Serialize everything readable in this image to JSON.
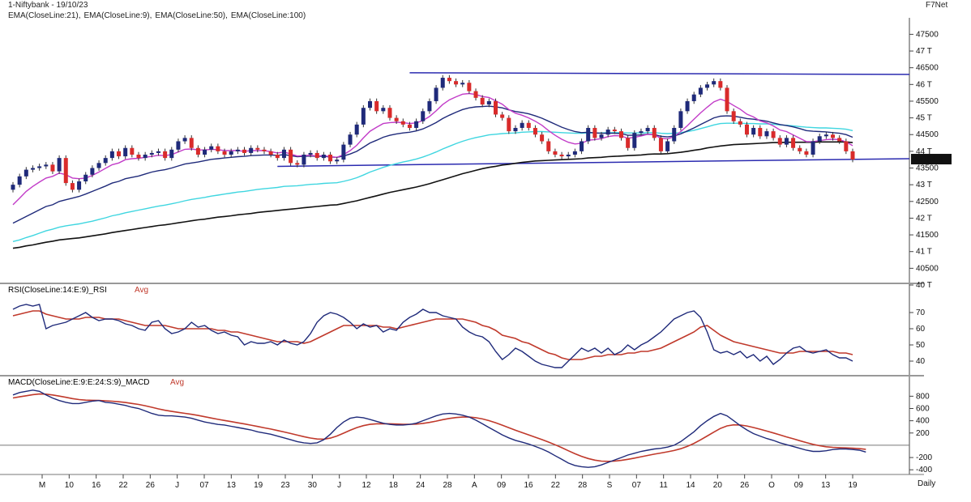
{
  "title": "1-Niftybank - 19/10/23",
  "vendor": "F7Net",
  "price_label": "43754.3",
  "interval": "Daily",
  "colors": {
    "bull": "#1f2a7a",
    "bear": "#d92b2b",
    "ema21": "#1f2a7a",
    "ema9": "#c23cc8",
    "ema50": "#3fd6e0",
    "ema100": "#111111",
    "rsi": "#1f2a7a",
    "rsi_avg": "#c0392b",
    "macd": "#1f2a7a",
    "macd_avg": "#c0392b",
    "grid": "#888888",
    "trend": "#2b2bb0"
  },
  "chart_data": [
    {
      "type": "candlestick",
      "legend": [
        "EMA(CloseLine:21),",
        "EMA(CloseLine:9),",
        "EMA(CloseLine:50),",
        "EMA(CloseLine:100)"
      ],
      "legend_colors": [
        "#1f2a7a",
        "#c23cc8",
        "#3fd6e0",
        "#111111"
      ],
      "y_ticks": [
        "47500",
        "47 T",
        "46500",
        "46 T",
        "45500",
        "45 T",
        "44500",
        "44 T",
        "43500",
        "43 T",
        "42500",
        "42 T",
        "41500",
        "41 T",
        "40500",
        "40 T"
      ],
      "ylim": [
        40000,
        47800
      ],
      "close": [
        43000,
        43250,
        43450,
        43500,
        43550,
        43600,
        43400,
        43800,
        43050,
        42850,
        43100,
        43300,
        43500,
        43650,
        43800,
        44000,
        43850,
        44100,
        43900,
        43800,
        43900,
        43950,
        44000,
        43800,
        44050,
        44300,
        44400,
        44100,
        43900,
        44050,
        44150,
        44000,
        43900,
        44000,
        44050,
        43950,
        44100,
        44050,
        44000,
        43900,
        43800,
        44050,
        43650,
        43600,
        43900,
        43950,
        43800,
        43900,
        43700,
        43750,
        44200,
        44500,
        44800,
        45300,
        45500,
        45200,
        45300,
        45000,
        44900,
        44800,
        44700,
        44900,
        45200,
        45500,
        45900,
        46200,
        46100,
        46000,
        46050,
        45800,
        45600,
        45400,
        45500,
        45100,
        45000,
        44600,
        44700,
        44850,
        44700,
        44500,
        44300,
        44000,
        43900,
        43850,
        43900,
        44000,
        44300,
        44700,
        44400,
        44500,
        44650,
        44600,
        44400,
        44100,
        44550,
        44600,
        44700,
        44400,
        44000,
        44300,
        44700,
        45200,
        45500,
        45700,
        45900,
        46000,
        46100,
        45900,
        45200,
        44900,
        44800,
        44500,
        44700,
        44450,
        44600,
        44400,
        44200,
        44400,
        44100,
        44000,
        43900,
        44300,
        44450,
        44500,
        44400,
        44300,
        44000,
        43754
      ],
      "ema21": [
        41850,
        41950,
        42050,
        42150,
        42250,
        42350,
        42400,
        42500,
        42550,
        42600,
        42650,
        42720,
        42800,
        42880,
        42960,
        43050,
        43100,
        43180,
        43220,
        43260,
        43320,
        43380,
        43420,
        43450,
        43500,
        43560,
        43620,
        43650,
        43680,
        43720,
        43760,
        43780,
        43800,
        43820,
        43840,
        43850,
        43870,
        43880,
        43890,
        43890,
        43880,
        43900,
        43870,
        43840,
        43850,
        43860,
        43850,
        43850,
        43830,
        43820,
        43860,
        43920,
        44000,
        44120,
        44250,
        44330,
        44420,
        44480,
        44520,
        44550,
        44570,
        44610,
        44670,
        44760,
        44860,
        44980,
        45080,
        45170,
        45250,
        45300,
        45330,
        45340,
        45350,
        45330,
        45300,
        45240,
        45190,
        45160,
        45120,
        45060,
        44990,
        44900,
        44810,
        44720,
        44650,
        44590,
        44560,
        44570,
        44550,
        44540,
        44540,
        44540,
        44530,
        44480,
        44480,
        44490,
        44510,
        44500,
        44450,
        44430,
        44460,
        44520,
        44610,
        44700,
        44800,
        44900,
        45000,
        45050,
        45060,
        45050,
        45020,
        44980,
        44960,
        44930,
        44900,
        44850,
        44800,
        44770,
        44730,
        44680,
        44620,
        44600,
        44590,
        44580,
        44560,
        44540,
        44500,
        44420
      ],
      "ema9": [
        42400,
        42600,
        42800,
        42950,
        43080,
        43200,
        43250,
        43350,
        43300,
        43200,
        43180,
        43200,
        43280,
        43380,
        43490,
        43600,
        43650,
        43750,
        43780,
        43790,
        43820,
        43850,
        43880,
        43870,
        43900,
        43980,
        44060,
        44070,
        44040,
        44040,
        44060,
        44050,
        44020,
        44020,
        44020,
        44000,
        44020,
        44020,
        44020,
        43990,
        43950,
        43980,
        43920,
        43860,
        43870,
        43880,
        43860,
        43870,
        43840,
        43820,
        43900,
        44020,
        44180,
        44400,
        44600,
        44720,
        44830,
        44860,
        44870,
        44860,
        44830,
        44850,
        44920,
        45040,
        45210,
        45400,
        45540,
        45630,
        45710,
        45730,
        45700,
        45640,
        45610,
        45510,
        45410,
        45250,
        45140,
        45080,
        45000,
        44900,
        44780,
        44620,
        44480,
        44360,
        44270,
        44220,
        44240,
        44330,
        44350,
        44380,
        44440,
        44470,
        44460,
        44390,
        44420,
        44460,
        44510,
        44490,
        44390,
        44370,
        44440,
        44590,
        44770,
        44960,
        45150,
        45320,
        45480,
        45560,
        45490,
        45370,
        45260,
        45110,
        45030,
        44910,
        44850,
        44760,
        44640,
        44590,
        44490,
        44390,
        44290,
        44290,
        44320,
        44350,
        44360,
        44350,
        44280,
        44170
      ],
      "ema50": [
        41300,
        41350,
        41420,
        41480,
        41550,
        41620,
        41670,
        41730,
        41770,
        41800,
        41830,
        41870,
        41910,
        41960,
        42010,
        42070,
        42110,
        42160,
        42200,
        42240,
        42280,
        42320,
        42360,
        42390,
        42430,
        42470,
        42520,
        42560,
        42590,
        42620,
        42660,
        42690,
        42720,
        42750,
        42780,
        42800,
        42830,
        42860,
        42880,
        42900,
        42920,
        42950,
        42960,
        42970,
        42990,
        43010,
        43020,
        43040,
        43050,
        43060,
        43100,
        43150,
        43210,
        43290,
        43380,
        43450,
        43520,
        43580,
        43630,
        43680,
        43720,
        43770,
        43830,
        43900,
        43980,
        44070,
        44150,
        44230,
        44300,
        44360,
        44410,
        44450,
        44490,
        44510,
        44530,
        44540,
        44550,
        44570,
        44580,
        44590,
        44590,
        44580,
        44570,
        44560,
        44550,
        44540,
        44540,
        44550,
        44550,
        44550,
        44560,
        44560,
        44560,
        44550,
        44550,
        44550,
        44560,
        44560,
        44540,
        44530,
        44540,
        44560,
        44590,
        44630,
        44680,
        44730,
        44790,
        44830,
        44840,
        44840,
        44840,
        44830,
        44830,
        44820,
        44820,
        44810,
        44790,
        44780,
        44760,
        44740,
        44720,
        44710,
        44700,
        44700,
        44690,
        44680,
        44660,
        44620
      ],
      "ema100": [
        41100,
        41130,
        41170,
        41200,
        41240,
        41280,
        41310,
        41350,
        41370,
        41390,
        41410,
        41440,
        41470,
        41500,
        41530,
        41570,
        41600,
        41630,
        41660,
        41690,
        41720,
        41750,
        41780,
        41800,
        41830,
        41860,
        41890,
        41920,
        41950,
        41970,
        42000,
        42030,
        42050,
        42070,
        42100,
        42120,
        42140,
        42170,
        42190,
        42210,
        42230,
        42250,
        42270,
        42290,
        42310,
        42330,
        42350,
        42370,
        42390,
        42400,
        42440,
        42480,
        42520,
        42570,
        42620,
        42670,
        42720,
        42770,
        42810,
        42850,
        42890,
        42930,
        42980,
        43030,
        43090,
        43150,
        43210,
        43270,
        43330,
        43380,
        43430,
        43480,
        43520,
        43550,
        43590,
        43610,
        43640,
        43670,
        43690,
        43710,
        43720,
        43730,
        43740,
        43750,
        43760,
        43770,
        43780,
        43800,
        43810,
        43820,
        43840,
        43850,
        43860,
        43870,
        43880,
        43890,
        43910,
        43920,
        43920,
        43930,
        43950,
        43970,
        44000,
        44030,
        44060,
        44100,
        44130,
        44160,
        44180,
        44200,
        44210,
        44220,
        44230,
        44240,
        44250,
        44260,
        44260,
        44270,
        44270,
        44270,
        44270,
        44270,
        44280,
        44280,
        44280,
        44280,
        44280,
        44260
      ]
    },
    {
      "type": "line",
      "title": "RSI(CloseLine:14:E:9)_RSI",
      "avg_label": "Avg",
      "y_ticks": [
        "70",
        "60",
        "50",
        "40"
      ],
      "ylim": [
        32,
        80
      ],
      "rsi": [
        72,
        74,
        75,
        74,
        75,
        60,
        62,
        63,
        64,
        66,
        68,
        70,
        67,
        65,
        66,
        66,
        65,
        63,
        62,
        60,
        59,
        64,
        65,
        60,
        57,
        58,
        60,
        64,
        61,
        62,
        59,
        57,
        58,
        56,
        55,
        50,
        52,
        51,
        51,
        52,
        50,
        53,
        51,
        50,
        52,
        57,
        64,
        68,
        70,
        69,
        67,
        64,
        60,
        63,
        61,
        62,
        58,
        60,
        59,
        64,
        67,
        69,
        72,
        70,
        70,
        68,
        67,
        66,
        61,
        58,
        56,
        55,
        52,
        46,
        41,
        44,
        48,
        46,
        43,
        40,
        38,
        37,
        36,
        36,
        40,
        44,
        48,
        46,
        48,
        45,
        48,
        44,
        46,
        50,
        47,
        50,
        52,
        55,
        58,
        62,
        66,
        68,
        70,
        71,
        67,
        58,
        47,
        45,
        46,
        44,
        46,
        42,
        44,
        40,
        43,
        38,
        41,
        45,
        48,
        49,
        46,
        45,
        46,
        47,
        44,
        42,
        42,
        40
      ],
      "rsi_avg": [
        68,
        69,
        70,
        71,
        71,
        69,
        68,
        67,
        66,
        66,
        66,
        67,
        67,
        67,
        66,
        66,
        66,
        65,
        64,
        63,
        62,
        62,
        62,
        62,
        61,
        60,
        60,
        60,
        60,
        60,
        60,
        59,
        59,
        58,
        58,
        57,
        56,
        55,
        54,
        53,
        52,
        52,
        52,
        52,
        51,
        52,
        54,
        56,
        58,
        60,
        62,
        62,
        62,
        62,
        62,
        62,
        61,
        61,
        60,
        61,
        62,
        63,
        64,
        65,
        66,
        66,
        66,
        66,
        66,
        65,
        64,
        62,
        61,
        59,
        56,
        55,
        54,
        52,
        51,
        49,
        47,
        45,
        44,
        42,
        41,
        41,
        41,
        42,
        43,
        43,
        44,
        44,
        44,
        45,
        45,
        46,
        46,
        47,
        48,
        50,
        52,
        54,
        56,
        58,
        61,
        62,
        59,
        56,
        54,
        52,
        51,
        50,
        49,
        48,
        47,
        46,
        45,
        45,
        45,
        46,
        46,
        46,
        46,
        46,
        46,
        45,
        45,
        44
      ]
    },
    {
      "type": "line",
      "title": "MACD(CloseLine:E:9:E:24:S:9)_MACD",
      "avg_label": "Avg",
      "y_ticks": [
        "800",
        "600",
        "400",
        "200",
        "-200",
        "-400"
      ],
      "ylim": [
        -450,
        950
      ],
      "macd": [
        820,
        860,
        880,
        900,
        880,
        820,
        770,
        730,
        700,
        680,
        680,
        700,
        720,
        730,
        700,
        690,
        670,
        650,
        620,
        600,
        560,
        520,
        490,
        480,
        480,
        470,
        460,
        440,
        410,
        380,
        360,
        340,
        330,
        310,
        290,
        270,
        250,
        220,
        200,
        180,
        150,
        120,
        90,
        60,
        40,
        30,
        40,
        90,
        180,
        290,
        380,
        440,
        460,
        450,
        420,
        390,
        360,
        340,
        330,
        330,
        340,
        360,
        400,
        440,
        480,
        510,
        520,
        510,
        490,
        460,
        410,
        350,
        290,
        230,
        170,
        120,
        80,
        50,
        20,
        -20,
        -60,
        -110,
        -170,
        -230,
        -290,
        -330,
        -350,
        -360,
        -350,
        -320,
        -280,
        -240,
        -200,
        -160,
        -130,
        -100,
        -80,
        -60,
        -50,
        -30,
        0,
        60,
        140,
        220,
        320,
        400,
        470,
        520,
        480,
        400,
        320,
        250,
        190,
        150,
        110,
        80,
        40,
        10,
        -20,
        -50,
        -80,
        -100,
        -100,
        -90,
        -70,
        -60,
        -60,
        -70,
        -80,
        -110
      ]
    }
  ],
  "dates": [
    "M",
    "10",
    "16",
    "22",
    "26",
    "J",
    "07",
    "13",
    "19",
    "23",
    "30",
    "J",
    "12",
    "18",
    "24",
    "28",
    "A",
    "09",
    "16",
    "22",
    "28",
    "S",
    "07",
    "11",
    "14",
    "20",
    "26",
    "O",
    "09",
    "13",
    "19"
  ]
}
